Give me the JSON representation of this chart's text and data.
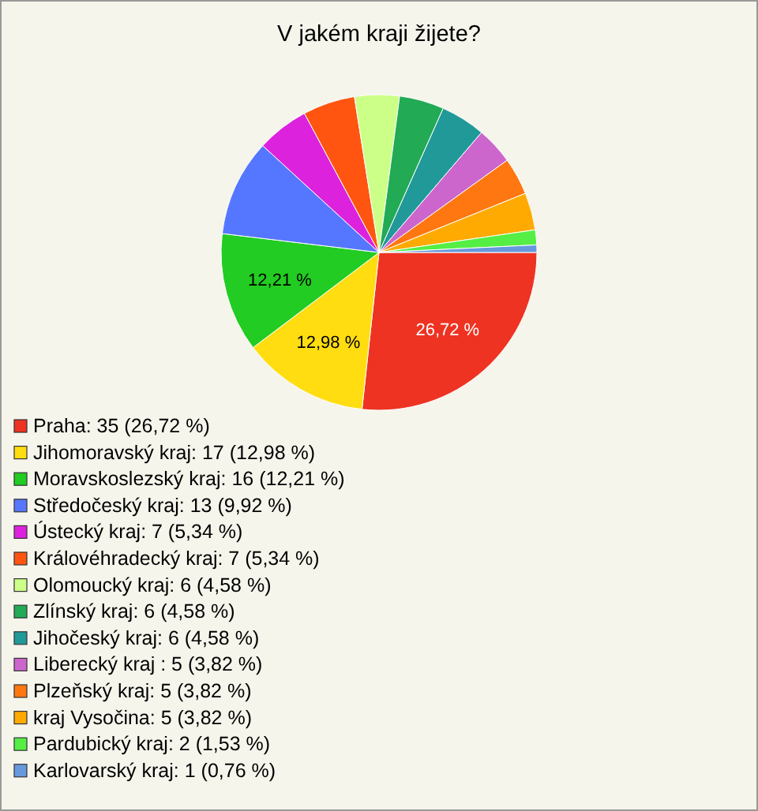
{
  "chart_data": {
    "type": "pie",
    "title": "V jakém kraji žijete?",
    "legend": "bottom",
    "categories": [
      "Praha: 35 (26,72 %)",
      "Jihomoravský kraj: 17 (12,98 %)",
      "Moravskoslezský kraj: 16 (12,21 %)",
      "Středočeský kraj: 13 (9,92 %)",
      "Ústecký kraj: 7 (5,34 %)",
      "Královéhradecký kraj: 7 (5,34 %)",
      "Olomoucký kraj: 6 (4,58 %)",
      "Zlínský kraj: 6 (4,58 %)",
      "Jihočeský kraj: 6 (4,58 %)",
      "Liberecký kraj : 5 (3,82 %)",
      "Plzeňský kraj: 5 (3,82 %)",
      "kraj Vysočina: 5 (3,82 %)",
      "Pardubický kraj: 2 (1,53 %)",
      "Karlovarský kraj: 1 (0,76 %)"
    ],
    "values": [
      26.72,
      12.98,
      12.21,
      9.92,
      5.34,
      5.34,
      4.58,
      4.58,
      4.58,
      3.82,
      3.82,
      3.82,
      1.53,
      0.76
    ],
    "colors": [
      "#ee3322",
      "#ffdd11",
      "#22cc22",
      "#5577ff",
      "#dd22dd",
      "#ff5511",
      "#ccff88",
      "#22aa55",
      "#229999",
      "#cc66cc",
      "#ff7711",
      "#ffaa00",
      "#55ee44",
      "#6699dd"
    ],
    "value_labels": [
      "26,72 %",
      "12,98 %",
      "12,21 %",
      null,
      null,
      null,
      null,
      null,
      null,
      null,
      null,
      null,
      null,
      null
    ]
  }
}
